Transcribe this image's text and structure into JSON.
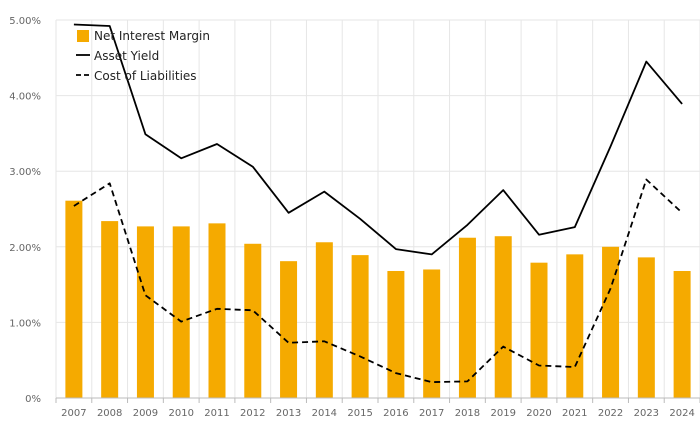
{
  "chart_data": {
    "type": "bar",
    "categories": [
      "2007",
      "2008",
      "2009",
      "2010",
      "2011",
      "2012",
      "2013",
      "2014",
      "2015",
      "2016",
      "2017",
      "2018",
      "2019",
      "2020",
      "2021",
      "2022",
      "2023",
      "2024"
    ],
    "series": [
      {
        "name": "Net Interest Margin",
        "type": "bar",
        "values": [
          2.61,
          2.34,
          2.27,
          2.27,
          2.31,
          2.04,
          1.81,
          2.06,
          1.89,
          1.68,
          1.7,
          2.12,
          2.14,
          1.79,
          1.9,
          2.0,
          1.86,
          1.68
        ]
      },
      {
        "name": "Asset Yield",
        "type": "line",
        "values": [
          4.94,
          4.92,
          3.49,
          3.17,
          3.36,
          3.06,
          2.45,
          2.73,
          2.37,
          1.97,
          1.9,
          2.29,
          2.75,
          2.16,
          2.26,
          3.33,
          4.45,
          3.89
        ]
      },
      {
        "name": "Cost of Liabilities",
        "type": "line-dashed",
        "values": [
          2.54,
          2.84,
          1.36,
          1.01,
          1.18,
          1.16,
          0.73,
          0.75,
          0.55,
          0.33,
          0.21,
          0.22,
          0.68,
          0.43,
          0.41,
          1.45,
          2.89,
          2.45
        ]
      }
    ],
    "yticks": [
      "0%",
      "1.00%",
      "2.00%",
      "3.00%",
      "4.00%",
      "5.00%"
    ],
    "ylim": [
      0,
      5
    ],
    "grid": true,
    "legend_position": "top-left",
    "colors": {
      "bar": "#f5aa00",
      "line": "#000000",
      "grid": "#e6e6e6",
      "axis": "#bbbbbb"
    }
  }
}
